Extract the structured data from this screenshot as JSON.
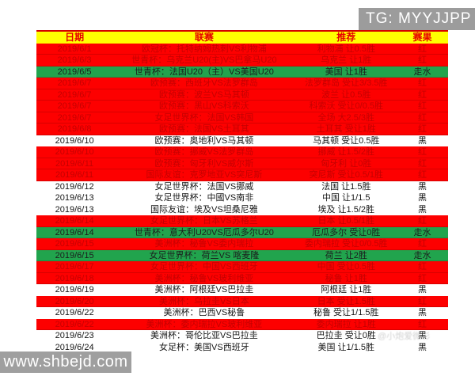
{
  "badge": {
    "text": "TG: MYYJJPP"
  },
  "watermarks": {
    "site": "www.shbejd.com",
    "faint": "@小炮爱微彩"
  },
  "colors": {
    "header_bg": "#ffff00",
    "header_text": "#e60000",
    "red_bg": "#fd0000",
    "red_text": "#c40000",
    "green_bg": "#21a44d",
    "badge_bg": "#9c9c9c"
  },
  "table": {
    "headers": {
      "date": "日期",
      "league": "联赛",
      "pick": "推荐",
      "result": "赛果"
    },
    "result_legend": {
      "red": "红",
      "green": "走水",
      "white": "黑"
    },
    "rows": [
      {
        "date": "2019/6/1",
        "league": "欧冠杯：托特纳姆热刺VS利物浦",
        "pick": "利物浦 让0.5胜",
        "result": "红",
        "color": "red"
      },
      {
        "date": "2019/6/3",
        "league": "世青杯：乌克兰U20(主)VS巴拿马U20",
        "pick": "乌克兰 让1胜",
        "result": "红",
        "color": "red"
      },
      {
        "date": "2019/6/5",
        "league": "世青杯：法国U20（主）VS美国U20",
        "pick": "美国 让1胜",
        "result": "走水",
        "color": "green"
      },
      {
        "date": "2019/6/7",
        "league": "欧预赛：西班牙VS法罗群岛",
        "pick": "法罗群岛 受让3/3.5胜",
        "result": "红",
        "color": "red"
      },
      {
        "date": "2019/6/7",
        "league": "欧预赛：波兰VS马其顿",
        "pick": "波兰 让0.5胜",
        "result": "红",
        "color": "red"
      },
      {
        "date": "2019/6/7",
        "league": "欧预赛：黑山VS科索沃",
        "pick": "科索沃 受让0/0.5胜",
        "result": "红",
        "color": "red"
      },
      {
        "date": "2019/6/7",
        "league": "女足世界杯：法国VS韩国",
        "pick": "全场 大2.5/3胜",
        "result": "红",
        "color": "red"
      },
      {
        "date": "2019/6/8",
        "league": "欧预赛：法国VS土耳其",
        "pick": "土耳其 受让1胜",
        "result": "红",
        "color": "red"
      },
      {
        "date": "2019/6/10",
        "league": "欧预赛：奥地利VS马其顿",
        "pick": "马其顿 受让0.5胜",
        "result": "黑",
        "color": "white"
      },
      {
        "date": "2019/6/10",
        "league": "欧预赛：挪威VS法罗群岛",
        "pick": "挪威 让1.5/2胜",
        "result": "红",
        "color": "red"
      },
      {
        "date": "2019/6/11",
        "league": "欧预赛：匈牙利VS威尔斯",
        "pick": "匈牙利 让0胜",
        "result": "红",
        "color": "red"
      },
      {
        "date": "2019/6/11",
        "league": "国际友谊：克罗地亚VS突尼斯",
        "pick": "突尼斯 受让0.5/1胜",
        "result": "红",
        "color": "red"
      },
      {
        "date": "2019/6/12",
        "league": "女足世界杯：法国VS挪威",
        "pick": "法国 让1.5胜",
        "result": "黑",
        "color": "white"
      },
      {
        "date": "2019/6/13",
        "league": "女足世界杯：中國VS南非",
        "pick": "中国 让1/1.5",
        "result": "黑",
        "color": "white"
      },
      {
        "date": "2019/6/13",
        "league": "国际友谊：埃及VS坦桑尼雅",
        "pick": "埃及 让1.5/2胜",
        "result": "黑",
        "color": "white"
      },
      {
        "date": "2019/6/14",
        "league": "女足世界杯：日本VS苏格兰",
        "pick": "日本 让0.5/1胜",
        "result": "红",
        "color": "red"
      },
      {
        "date": "2019/6/14",
        "league": "世青杯：意大利U20VS厄瓜多尔U20",
        "pick": "厄瓜多尔 受让0胜",
        "result": "走水",
        "color": "green"
      },
      {
        "date": "2019/6/15",
        "league": "美洲杯：秘鲁VS委内瑞拉",
        "pick": "委内瑞拉 受让0/0.5胜",
        "result": "红",
        "color": "red"
      },
      {
        "date": "2019/6/15",
        "league": "女足世界杯：荷兰VS 喀麦隆",
        "pick": "荷兰 让2胜",
        "result": "走水",
        "color": "green"
      },
      {
        "date": "2019/6/17",
        "league": "女足世界杯：中国VS西班牙",
        "pick": "中国 受让0.5胜",
        "result": "红",
        "color": "red"
      },
      {
        "date": "2019/6/18",
        "league": "美洲杯：秘鲁VS玻利维亚",
        "pick": "秘鲁 让1胜",
        "result": "红",
        "color": "red"
      },
      {
        "date": "2019/6/19",
        "league": "美洲杯：阿根廷VS巴拉圭",
        "pick": "阿根廷 让1胜",
        "result": "黑",
        "color": "white"
      },
      {
        "date": "2019/6/20",
        "league": "美洲杯：乌拉圭VS日本",
        "pick": "日本 受让1.5胜",
        "result": "红",
        "color": "red"
      },
      {
        "date": "2019/6/22",
        "league": "美洲杯：巴西VS秘鲁",
        "pick": "秘鲁 受让1/1.5胜",
        "result": "黑",
        "color": "white"
      },
      {
        "date": "2019/6/22",
        "league": "美洲杯：委内瑞拉VS玻利维亚",
        "pick": "委内瑞拉 让1胜",
        "result": "红",
        "color": "red"
      },
      {
        "date": "2019/6/23",
        "league": "美洲杯：哥伦比亚VS巴拉圭",
        "pick": "巴拉圭 受让0胜",
        "result": "黑",
        "color": "white"
      },
      {
        "date": "2019/6/24",
        "league": "女足杯：美国VS西班牙",
        "pick": "美国 让1/1.5胜",
        "result": "黑",
        "color": "white"
      }
    ]
  }
}
